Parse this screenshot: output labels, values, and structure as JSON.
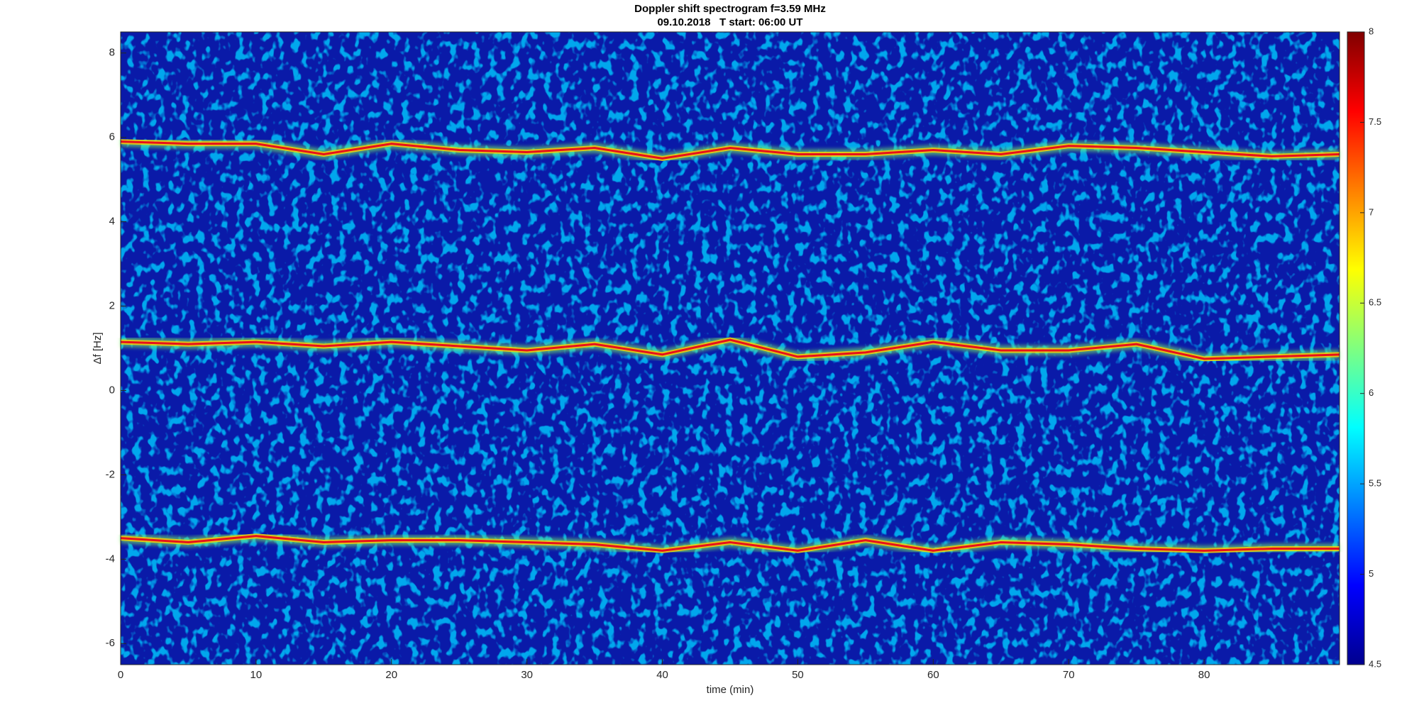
{
  "chart_data": {
    "type": "spectrogram",
    "title": "Doppler shift spectrogram f=3.59 MHz",
    "subtitle": "09.10.2018   T start: 06:00 UT",
    "x_label": "time (min)",
    "y_label": "Δf [Hz]",
    "xlim": [
      0,
      90
    ],
    "xticks": [
      0,
      10,
      20,
      30,
      40,
      50,
      60,
      70,
      80
    ],
    "ylim": [
      -6.5,
      8.5
    ],
    "yticks": [
      -6,
      -4,
      -2,
      0,
      2,
      4,
      6,
      8
    ],
    "clim": [
      4.5,
      8
    ],
    "cticks": [
      4.5,
      5,
      5.5,
      6,
      6.5,
      7,
      7.5,
      8
    ],
    "colormap": "jet",
    "x": [
      0,
      5,
      10,
      15,
      20,
      25,
      30,
      35,
      40,
      45,
      50,
      55,
      60,
      65,
      70,
      75,
      80,
      85,
      90
    ],
    "series": [
      {
        "color": "#e8101a",
        "values": [
          5.9,
          5.85,
          5.85,
          5.6,
          5.85,
          5.7,
          5.65,
          5.75,
          5.5,
          5.75,
          5.6,
          5.6,
          5.7,
          5.6,
          5.8,
          5.75,
          5.65,
          5.55,
          5.6
        ]
      },
      {
        "color": "#e8101a",
        "values": [
          1.15,
          1.1,
          1.15,
          1.05,
          1.15,
          1.05,
          0.95,
          1.1,
          0.85,
          1.2,
          0.8,
          0.9,
          1.15,
          0.95,
          0.95,
          1.1,
          0.75,
          0.8,
          0.85
        ]
      },
      {
        "color": "#e8101a",
        "values": [
          -3.5,
          -3.6,
          -3.45,
          -3.6,
          -3.55,
          -3.55,
          -3.6,
          -3.65,
          -3.8,
          -3.6,
          -3.8,
          -3.55,
          -3.8,
          -3.6,
          -3.65,
          -3.75,
          -3.8,
          -3.75,
          -3.75
        ]
      }
    ]
  }
}
